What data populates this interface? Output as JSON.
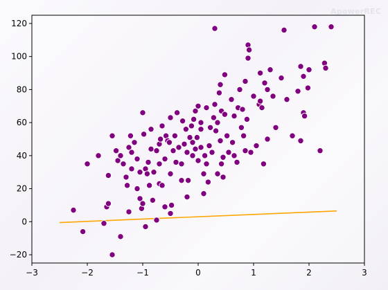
{
  "watermark": "ApowerREC",
  "chart_data": {
    "type": "scatter",
    "title": "",
    "xlabel": "",
    "ylabel": "",
    "xlim": [
      -3,
      3
    ],
    "ylim": [
      -25,
      125
    ],
    "xticks": [
      -3,
      -2,
      -1,
      0,
      1,
      2,
      3
    ],
    "yticks": [
      -20,
      0,
      20,
      40,
      60,
      80,
      100,
      120
    ],
    "grid": false,
    "colors": {
      "points": "#800080",
      "point_edge": "#ffffff",
      "line": "#ffa500"
    },
    "series": [
      {
        "kind": "scatter",
        "points": [
          [
            -2.25,
            7
          ],
          [
            -2.08,
            -6
          ],
          [
            -2.0,
            35
          ],
          [
            -1.8,
            40
          ],
          [
            -1.7,
            -1
          ],
          [
            -1.65,
            9
          ],
          [
            -1.62,
            11
          ],
          [
            -1.62,
            28
          ],
          [
            -1.55,
            -20
          ],
          [
            -1.55,
            52
          ],
          [
            -1.48,
            43
          ],
          [
            -1.45,
            37
          ],
          [
            -1.4,
            40
          ],
          [
            -1.4,
            -9
          ],
          [
            -1.35,
            35
          ],
          [
            -1.3,
            27
          ],
          [
            -1.28,
            22
          ],
          [
            -1.25,
            45
          ],
          [
            -1.25,
            6
          ],
          [
            -1.22,
            52
          ],
          [
            -1.2,
            32
          ],
          [
            -1.2,
            42
          ],
          [
            -1.15,
            48
          ],
          [
            -1.1,
            20
          ],
          [
            -1.1,
            38
          ],
          [
            -1.05,
            14
          ],
          [
            -1.05,
            30
          ],
          [
            -1.02,
            8
          ],
          [
            -1.0,
            66
          ],
          [
            -1.0,
            11
          ],
          [
            -0.98,
            53
          ],
          [
            -0.95,
            32
          ],
          [
            -0.95,
            -3
          ],
          [
            -0.92,
            29
          ],
          [
            -0.9,
            36
          ],
          [
            -0.88,
            22
          ],
          [
            -0.85,
            44
          ],
          [
            -0.85,
            56
          ],
          [
            -0.82,
            13
          ],
          [
            -0.8,
            30
          ],
          [
            -0.75,
            43
          ],
          [
            -0.75,
            1
          ],
          [
            -0.7,
            47
          ],
          [
            -0.7,
            35
          ],
          [
            -0.7,
            23
          ],
          [
            -0.68,
            50
          ],
          [
            -0.65,
            58
          ],
          [
            -0.65,
            22
          ],
          [
            -0.6,
            38
          ],
          [
            -0.6,
            9
          ],
          [
            -0.58,
            52
          ],
          [
            -0.55,
            49
          ],
          [
            -0.52,
            48
          ],
          [
            -0.5,
            63
          ],
          [
            -0.5,
            5
          ],
          [
            -0.5,
            29
          ],
          [
            -0.48,
            10
          ],
          [
            -0.45,
            43
          ],
          [
            -0.42,
            52
          ],
          [
            -0.4,
            36
          ],
          [
            -0.38,
            66
          ],
          [
            -0.35,
            45
          ],
          [
            -0.3,
            35
          ],
          [
            -0.3,
            25
          ],
          [
            -0.28,
            61
          ],
          [
            -0.25,
            47
          ],
          [
            -0.22,
            56
          ],
          [
            -0.2,
            42
          ],
          [
            -0.2,
            15
          ],
          [
            -0.18,
            25
          ],
          [
            -0.15,
            51
          ],
          [
            -0.12,
            58
          ],
          [
            -0.1,
            40
          ],
          [
            -0.1,
            48
          ],
          [
            -0.08,
            62
          ],
          [
            -0.05,
            44
          ],
          [
            -0.05,
            67
          ],
          [
            -0.02,
            51
          ],
          [
            0.0,
            37
          ],
          [
            0.0,
            70
          ],
          [
            0.05,
            45
          ],
          [
            0.05,
            56
          ],
          [
            0.05,
            60
          ],
          [
            0.1,
            17
          ],
          [
            0.1,
            29
          ],
          [
            0.12,
            40
          ],
          [
            0.15,
            35
          ],
          [
            0.15,
            69
          ],
          [
            0.18,
            24
          ],
          [
            0.2,
            46
          ],
          [
            0.22,
            57
          ],
          [
            0.25,
            42
          ],
          [
            0.28,
            63
          ],
          [
            0.3,
            71
          ],
          [
            0.3,
            117
          ],
          [
            0.32,
            55
          ],
          [
            0.35,
            29
          ],
          [
            0.35,
            60
          ],
          [
            0.38,
            78
          ],
          [
            0.4,
            49
          ],
          [
            0.4,
            83
          ],
          [
            0.42,
            35
          ],
          [
            0.42,
            67
          ],
          [
            0.45,
            27
          ],
          [
            0.45,
            39
          ],
          [
            0.48,
            65
          ],
          [
            0.48,
            89
          ],
          [
            0.52,
            52
          ],
          [
            0.55,
            42
          ],
          [
            0.6,
            74
          ],
          [
            0.62,
            48
          ],
          [
            0.65,
            64
          ],
          [
            0.65,
            40
          ],
          [
            0.7,
            36
          ],
          [
            0.72,
            69
          ],
          [
            0.75,
            80
          ],
          [
            0.78,
            57
          ],
          [
            0.8,
            68
          ],
          [
            0.82,
            52
          ],
          [
            0.85,
            43
          ],
          [
            0.85,
            85
          ],
          [
            0.88,
            62
          ],
          [
            0.9,
            99
          ],
          [
            0.9,
            107
          ],
          [
            0.92,
            104
          ],
          [
            0.95,
            42
          ],
          [
            1.0,
            76
          ],
          [
            1.05,
            46
          ],
          [
            1.1,
            71
          ],
          [
            1.12,
            73
          ],
          [
            1.12,
            90
          ],
          [
            1.15,
            69
          ],
          [
            1.18,
            35
          ],
          [
            1.2,
            84
          ],
          [
            1.25,
            50
          ],
          [
            1.25,
            80
          ],
          [
            1.3,
            92
          ],
          [
            1.35,
            76
          ],
          [
            1.4,
            57
          ],
          [
            1.5,
            87
          ],
          [
            1.55,
            116
          ],
          [
            1.6,
            74
          ],
          [
            1.7,
            52
          ],
          [
            1.8,
            79
          ],
          [
            1.85,
            94
          ],
          [
            1.9,
            66
          ],
          [
            1.9,
            88
          ],
          [
            1.92,
            64
          ],
          [
            1.98,
            81
          ],
          [
            2.1,
            118
          ],
          [
            2.0,
            92
          ],
          [
            2.2,
            43
          ],
          [
            2.28,
            96
          ],
          [
            2.3,
            93
          ],
          [
            2.4,
            118
          ],
          [
            1.85,
            49
          ]
        ]
      },
      {
        "kind": "line",
        "x": [
          -2.5,
          2.5
        ],
        "y": [
          -0.5,
          6.5
        ]
      }
    ]
  }
}
